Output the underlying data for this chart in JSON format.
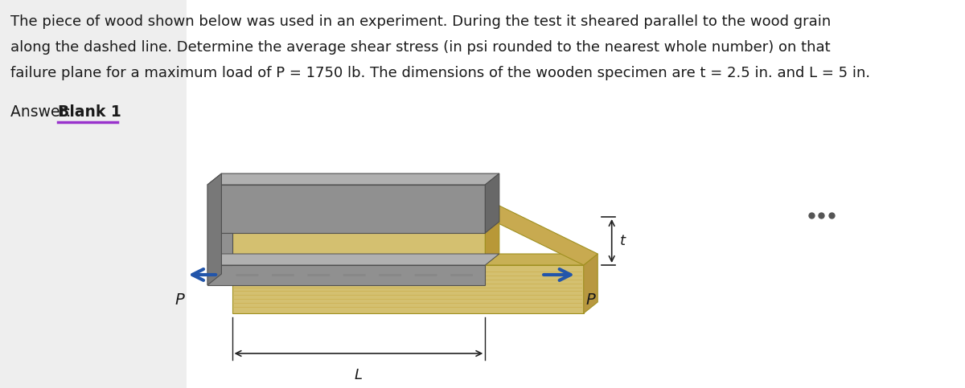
{
  "title_line1": "The piece of wood shown below was used in an experiment. During the test it sheared parallel to the wood grain",
  "title_line2": "along the dashed line. Determine the average shear stress (in psi rounded to the nearest whole number) on that",
  "title_line3": "failure plane for a maximum load of P = 1750 lb. The dimensions of the wooden specimen are t = 2.5 in. and L = 5 in.",
  "answer_prefix": "Answer: ",
  "answer_bold": "Blank 1",
  "answer_underline_color": "#9933cc",
  "bg_color": "#ffffff",
  "panel_bg": "#eeeeee",
  "text_color": "#1a1a1a",
  "dots_color": "#555555",
  "title_fontsize": 13.0,
  "answer_fontsize": 13.5,
  "wood_front_color": "#d4c070",
  "wood_top_color": "#c8b055",
  "wood_right_color": "#b89840",
  "wood_step_color": "#c8aa50",
  "metal_front_color": "#909090",
  "metal_top_color": "#b0b0b0",
  "metal_dark_color": "#686868",
  "metal_side_color": "#787878",
  "arrow_color": "#2255aa",
  "dashed_color": "#888888",
  "dim_color": "#222222"
}
